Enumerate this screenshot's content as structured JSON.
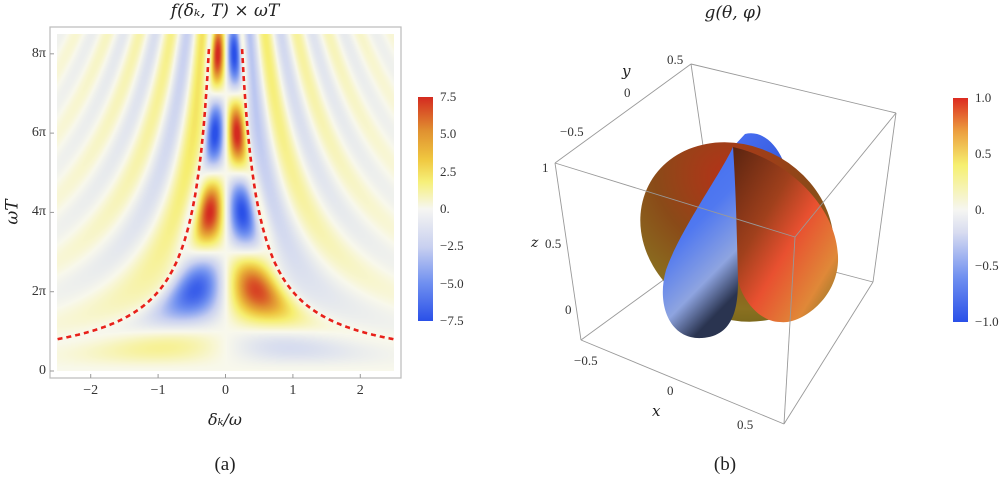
{
  "captions": {
    "a": "(a)",
    "b": "(b)"
  },
  "chart_data": [
    {
      "type": "heatmap",
      "title": "f(δₖ, T) × ωT",
      "xlabel": "δₖ/ω",
      "ylabel": "ωT",
      "xlim": [
        -2.5,
        2.5
      ],
      "ylim_in_pi": [
        0,
        8.5
      ],
      "xticks": [
        -2,
        -1,
        0,
        1,
        2
      ],
      "xtick_labels": [
        "−2",
        "−1",
        "0",
        "1",
        "2"
      ],
      "yticks_in_pi": [
        0,
        2,
        4,
        6,
        8
      ],
      "ytick_labels": [
        "0",
        "2π",
        "4π",
        "6π",
        "8π"
      ],
      "colorbar": {
        "range": [
          -7.5,
          7.5
        ],
        "labels": [
          "7.5",
          "5.0",
          "2.5",
          "0.",
          "−2.5",
          "−5.0",
          "−7.5"
        ]
      },
      "overlay_curve": {
        "equation": "ωT = 2π / |δₖ/ω|",
        "color": "#e8201a"
      },
      "features": [
        {
          "x": -0.5,
          "y_in_pi": 1.8,
          "value": -7.5
        },
        {
          "x": 0.5,
          "y_in_pi": 1.8,
          "value": 7.5
        },
        {
          "x": -0.12,
          "y_in_pi": 4,
          "value": 5
        },
        {
          "x": 0.12,
          "y_in_pi": 4,
          "value": -5
        },
        {
          "x": -0.12,
          "y_in_pi": 6,
          "value": -5
        },
        {
          "x": 0.12,
          "y_in_pi": 6,
          "value": 4.5
        },
        {
          "x": -0.12,
          "y_in_pi": 8,
          "value": 5
        },
        {
          "x": 0.12,
          "y_in_pi": 8,
          "value": -5
        }
      ]
    },
    {
      "type": "surface3d",
      "title": "g(θ, φ)",
      "axes": {
        "x": {
          "label": "x",
          "ticks": [
            "−0.5",
            "0",
            "0.5"
          ]
        },
        "y": {
          "label": "y",
          "ticks": [
            "−0.5",
            "0",
            "0.5"
          ]
        },
        "z": {
          "label": "z",
          "ticks": [
            "0",
            "0.5",
            "1"
          ]
        }
      },
      "colorbar": {
        "range": [
          -1.0,
          1.0
        ],
        "labels": [
          "1.0",
          "0.5",
          "0.",
          "−0.5",
          "−1.0"
        ]
      }
    }
  ]
}
